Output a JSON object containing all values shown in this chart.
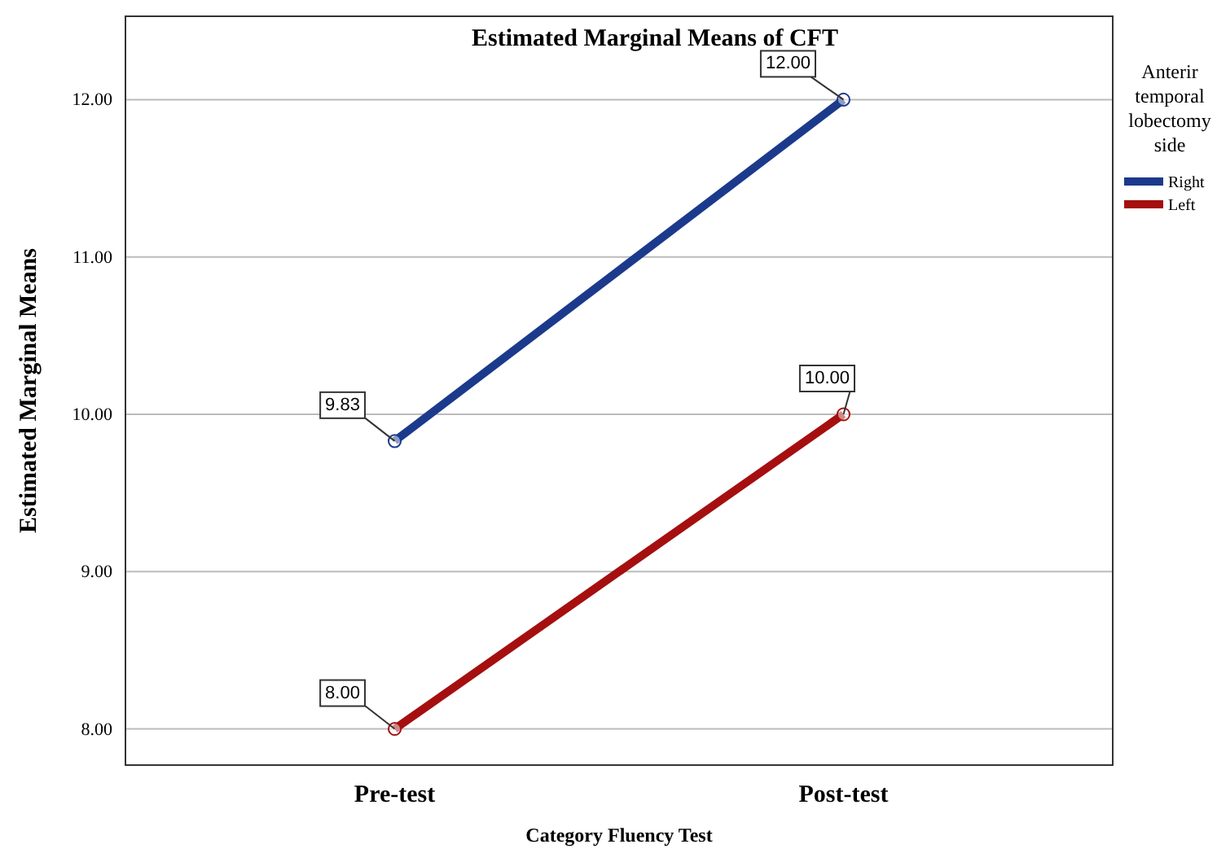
{
  "chart_data": {
    "type": "line",
    "title": "Estimated Marginal Means of CFT",
    "xlabel": "Category Fluency Test",
    "ylabel": "Estimated Marginal Means",
    "legend_title": "Anterir temporal lobectomy side",
    "categories": [
      "Pre-test",
      "Post-test"
    ],
    "series": [
      {
        "name": "Right",
        "color": "#1c3a8c",
        "values": [
          9.83,
          12.0
        ],
        "value_labels": [
          "9.83",
          "12.00"
        ]
      },
      {
        "name": "Left",
        "color": "#a50f0f",
        "values": [
          8.0,
          10.0
        ],
        "value_labels": [
          "8.00",
          "10.00"
        ]
      }
    ],
    "ylim": [
      7.77,
      12.53
    ],
    "yticks": [
      {
        "value": 8,
        "label": "8.00"
      },
      {
        "value": 9,
        "label": "9.00"
      },
      {
        "value": 10,
        "label": "10.00"
      },
      {
        "value": 11,
        "label": "11.00"
      },
      {
        "value": 12,
        "label": "12.00"
      }
    ],
    "grid": "y",
    "legend": "top right",
    "marker": "circle",
    "line_style": "solid"
  }
}
